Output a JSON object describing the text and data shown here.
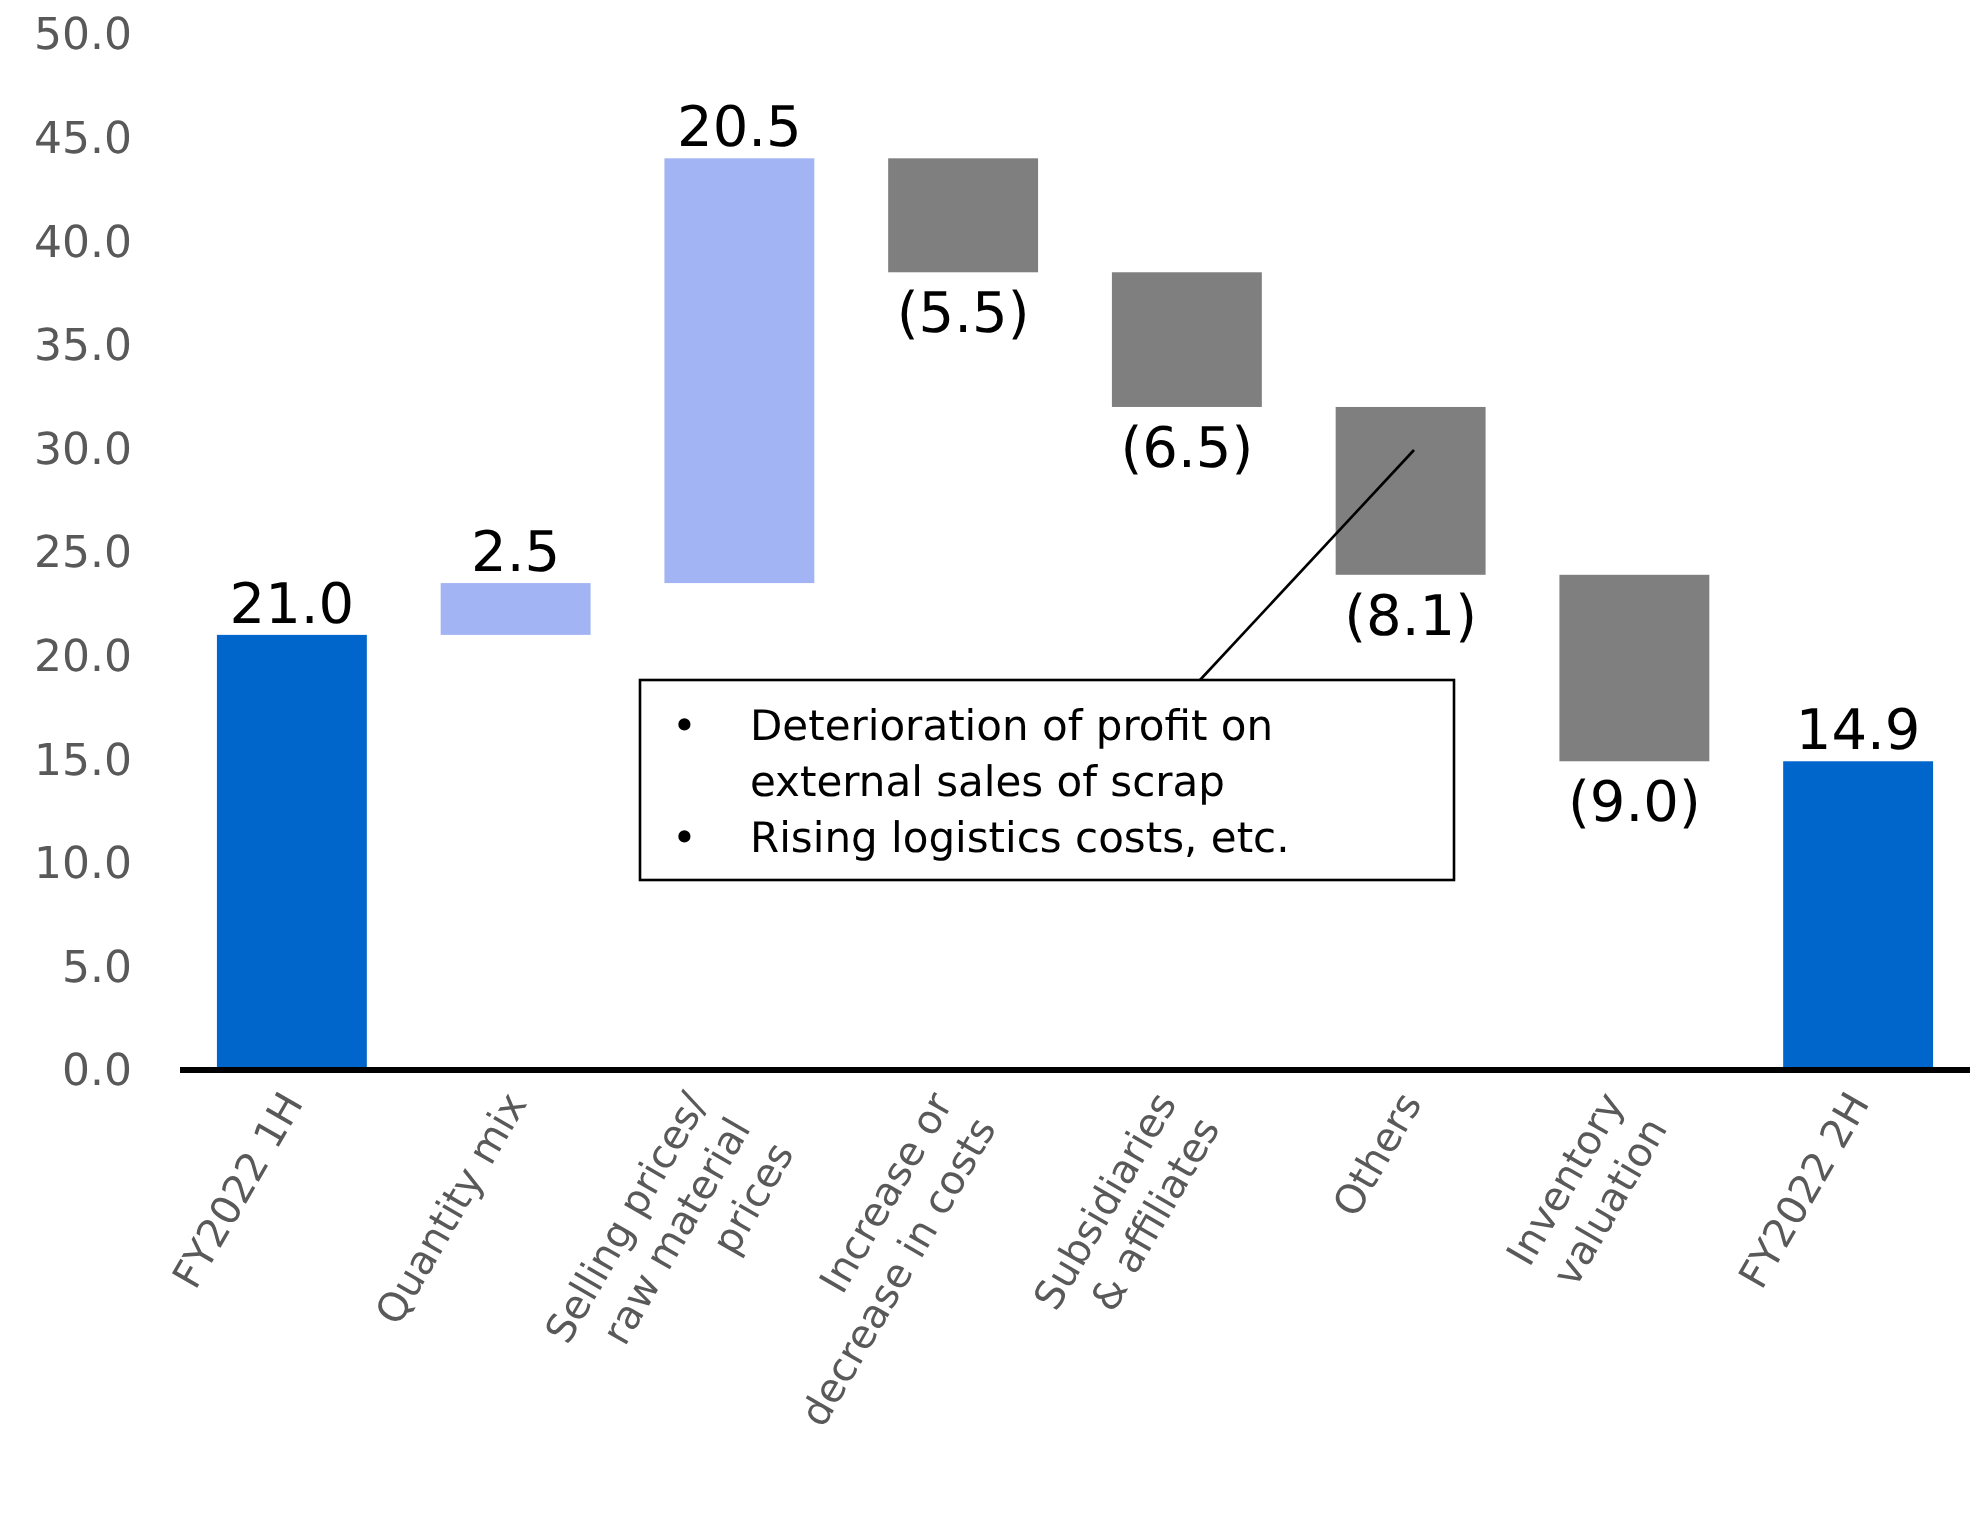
{
  "chart_data": {
    "type": "bar",
    "categories": [
      "FY2022 1H",
      "Quantity mix",
      "Selling prices/\nraw material\nprices",
      "Increase or\ndecrease in costs",
      "Subsidiaries\n& affiliates",
      "Others",
      "Inventory\nvaluation",
      "FY2022 2H"
    ],
    "values": [
      21.0,
      2.5,
      20.5,
      -5.5,
      -6.5,
      -8.1,
      -9.0,
      14.9
    ],
    "base": [
      0,
      21.0,
      23.5,
      44.0,
      38.5,
      32.0,
      23.9,
      0
    ],
    "colors": [
      "#0066cc",
      "#a3b4f5",
      "#a3b4f5",
      "#7f7f7f",
      "#7f7f7f",
      "#7f7f7f",
      "#7f7f7f",
      "#0066cc"
    ],
    "value_labels": [
      "21.0",
      "2.5",
      "20.5",
      "(5.5)",
      "(6.5)",
      "(8.1)",
      "(9.0)",
      "14.9"
    ],
    "ylim": [
      0,
      50
    ],
    "yticks": [
      {
        "value": 0,
        "label": "0.0"
      },
      {
        "value": 5,
        "label": "5.0"
      },
      {
        "value": 10,
        "label": "10.0"
      },
      {
        "value": 15,
        "label": "15.0"
      },
      {
        "value": 20,
        "label": "20.0"
      },
      {
        "value": 25,
        "label": "25.0"
      },
      {
        "value": 30,
        "label": "30.0"
      },
      {
        "value": 35,
        "label": "35.0"
      },
      {
        "value": 40,
        "label": "40.0"
      },
      {
        "value": 45,
        "label": "45.0"
      },
      {
        "value": 50,
        "label": "50.0"
      }
    ],
    "grid": false,
    "annotations": [
      "• Deterioration of profit on external sales of scrap\n• Rising logistics costs, etc."
    ]
  }
}
